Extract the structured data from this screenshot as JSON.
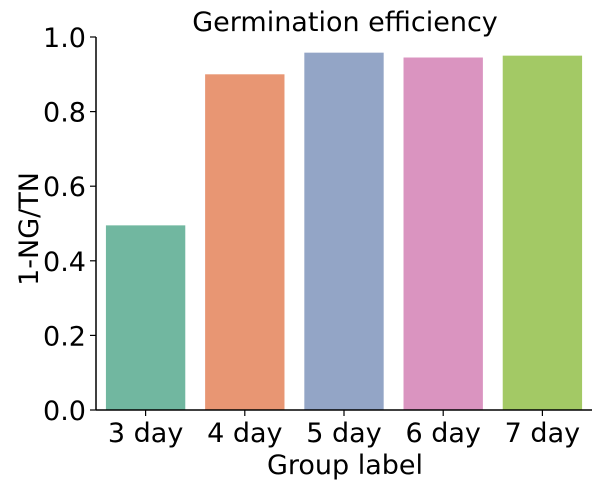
{
  "chart_data": {
    "type": "bar",
    "title": "Germination efficiency",
    "xlabel": "Group label",
    "ylabel": "1-NG/TN",
    "categories": [
      "3 day",
      "4 day",
      "5 day",
      "6 day",
      "7 day"
    ],
    "values": [
      0.495,
      0.9,
      0.958,
      0.945,
      0.95
    ],
    "colors": [
      "#71b7a0",
      "#e89673",
      "#93a5c6",
      "#da94c0",
      "#a3c965"
    ],
    "ylim": [
      0,
      1.0
    ],
    "yticks": [
      0.0,
      0.2,
      0.4,
      0.6,
      0.8,
      1.0
    ],
    "ytick_labels": [
      "0.0",
      "0.2",
      "0.4",
      "0.6",
      "0.8",
      "1.0"
    ],
    "grid": false,
    "legend": false
  }
}
